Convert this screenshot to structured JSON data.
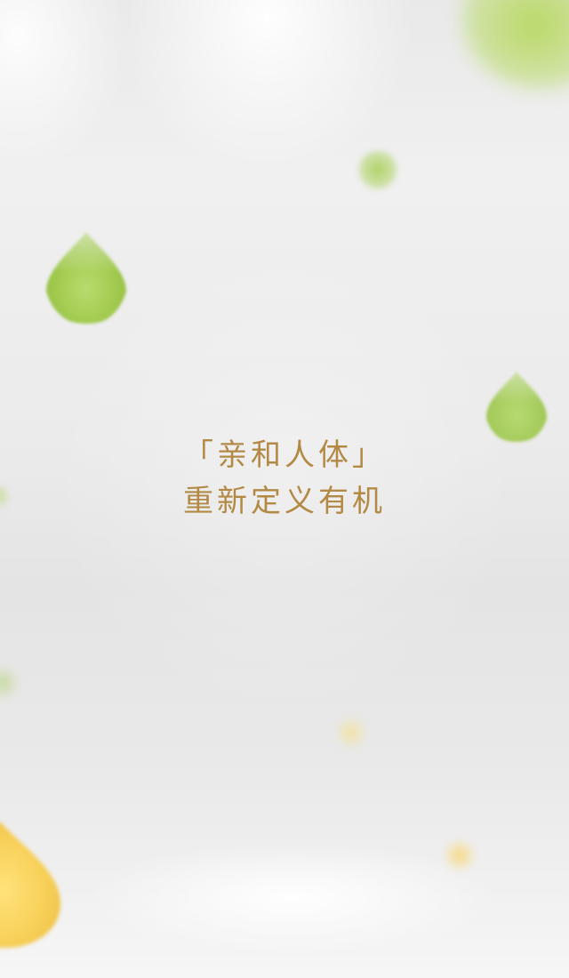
{
  "headline": {
    "line1": "「亲和人体」",
    "line2": "重新定义有机"
  },
  "colors": {
    "headline_text": "#b28a46",
    "background": "#ebebeb",
    "drop_green": "#a8d05a",
    "drop_yellow": "#f6d160"
  },
  "decorations": [
    "green-drop-icon",
    "yellow-drop-icon"
  ]
}
